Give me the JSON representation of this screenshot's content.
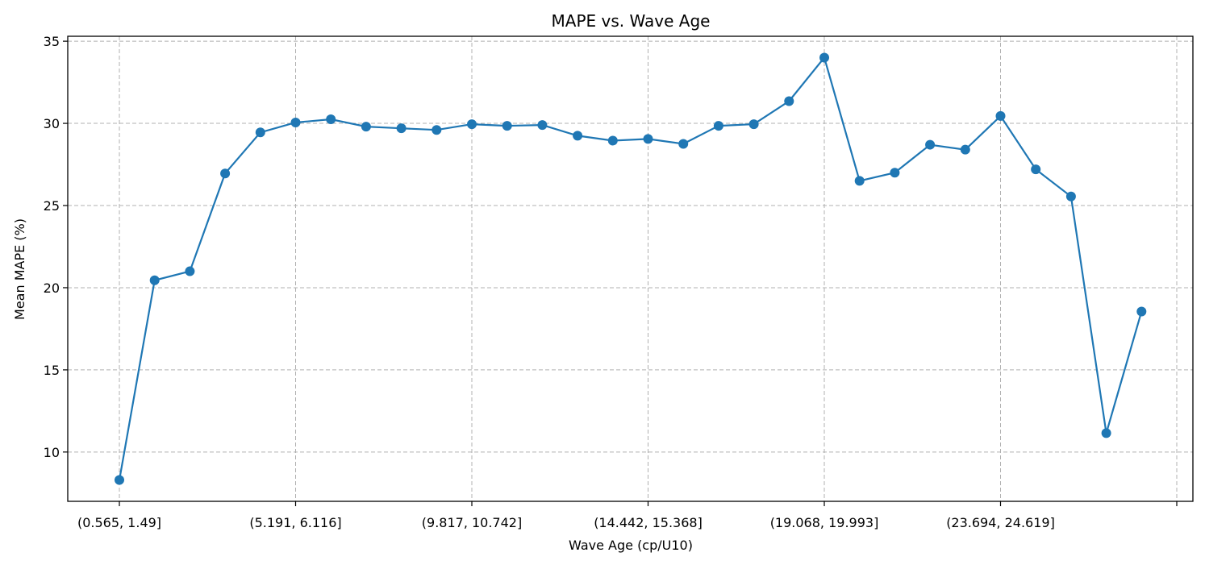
{
  "chart_data": {
    "type": "line",
    "title": "MAPE vs. Wave Age",
    "xlabel": "Wave Age (cp/U10)",
    "ylabel": "Mean MAPE (%)",
    "ylim": [
      7,
      35.3
    ],
    "yticks": [
      10,
      15,
      20,
      25,
      30,
      35
    ],
    "xtick_labels": [
      "(0.565, 1.49]",
      "(5.191, 6.116]",
      "(9.817, 10.742]",
      "(14.442, 15.368]",
      "(19.068, 19.993]",
      "(23.694, 24.619]",
      ""
    ],
    "xtick_every": 5,
    "grid": true,
    "color": "#1f77b4",
    "series": [
      {
        "values": [
          8.3,
          20.45,
          21.0,
          26.95,
          29.45,
          30.05,
          30.25,
          29.8,
          29.7,
          29.6,
          29.95,
          29.85,
          29.9,
          29.25,
          28.95,
          29.05,
          28.75,
          29.85,
          29.95,
          31.35,
          34.0,
          26.5,
          27.0,
          28.7,
          28.4,
          30.45,
          27.2,
          25.55,
          11.15,
          18.55
        ]
      }
    ]
  }
}
